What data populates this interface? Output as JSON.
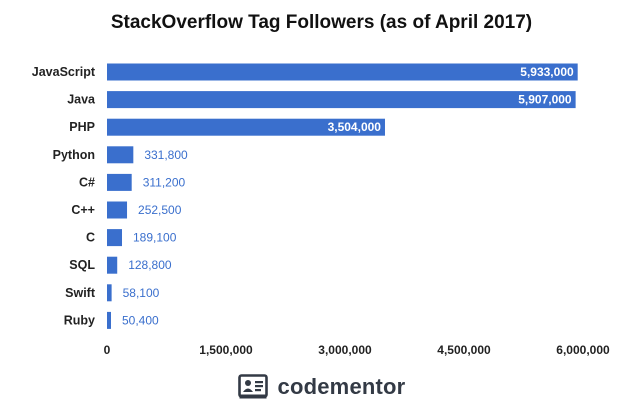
{
  "chart_data": {
    "type": "bar",
    "orientation": "horizontal",
    "title": "StackOverflow Tag Followers (as of April 2017)",
    "categories": [
      "JavaScript",
      "Java",
      "PHP",
      "Python",
      "C#",
      "C++",
      "C",
      "SQL",
      "Swift",
      "Ruby"
    ],
    "values": [
      5933000,
      5907000,
      3504000,
      331800,
      311200,
      252500,
      189100,
      128800,
      58100,
      50400
    ],
    "data_labels": [
      "5,933,000",
      "5,907,000",
      "3,504,000",
      "331,800",
      "311,200",
      "252,500",
      "189,100",
      "128,800",
      "58,100",
      "50,400"
    ],
    "x_ticks": [
      0,
      1500000,
      3000000,
      4500000,
      6000000
    ],
    "x_tick_labels": [
      "0",
      "1,500,000",
      "3,000,000",
      "4,500,000",
      "6,000,000"
    ],
    "xlim": [
      0,
      6000000
    ],
    "xlabel": "",
    "ylabel": "",
    "grid": false,
    "legend": "none",
    "colors": {
      "bar": "#3a6fcd",
      "label_inside": "#ffffff",
      "label_outside": "#3a6fcd"
    }
  },
  "brand": {
    "name": "codementor",
    "icon": "codementor-logo-icon",
    "color": "#333a45"
  }
}
